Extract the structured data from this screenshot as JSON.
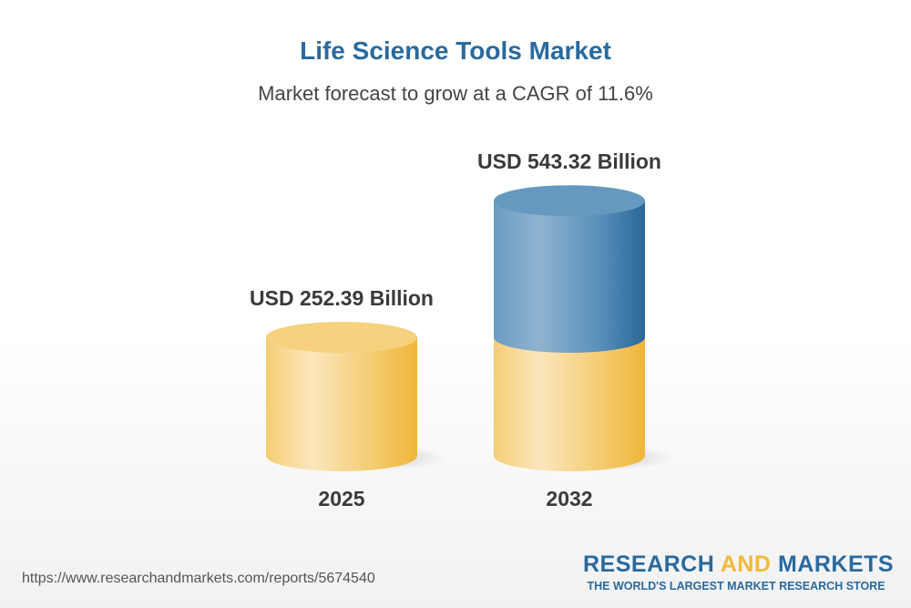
{
  "header": {
    "title": "Life Science Tools Market",
    "subtitle": "Market forecast to grow at a CAGR of 11.6%"
  },
  "chart_data": {
    "type": "bar",
    "style": "3d-cylinder",
    "categories": [
      "2025",
      "2032"
    ],
    "values": [
      252.39,
      543.32
    ],
    "data_labels": [
      "USD 252.39 Billion",
      "USD 543.32 Billion"
    ],
    "colors": {
      "base": "#f2c14e",
      "growth": "#2e6b9e"
    }
  },
  "footer": {
    "url": "https://www.researchandmarkets.com/reports/5674540"
  },
  "logo": {
    "word1": "RESEARCH",
    "word2": "AND",
    "word3": "MARKETS",
    "tagline": "THE WORLD'S LARGEST MARKET RESEARCH STORE"
  }
}
